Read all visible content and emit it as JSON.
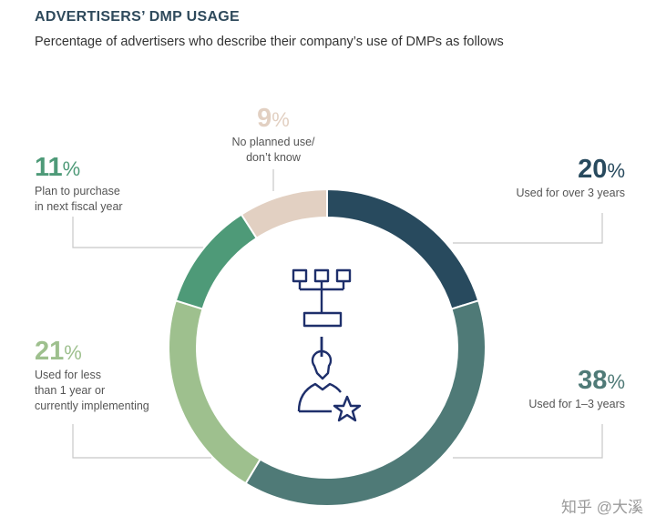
{
  "header": {
    "title": "ADVERTISERS’ DMP USAGE",
    "subtitle": "Percentage of advertisers who describe their company’s use of DMPs as follows"
  },
  "chart_data": {
    "type": "pie",
    "donut": true,
    "unit": "%",
    "series": [
      {
        "name": "Used for over 3 years",
        "value": 20,
        "label": "20",
        "color": "#284a5e",
        "lines": [
          "Used for over 3 years"
        ]
      },
      {
        "name": "Used for 1–3 years",
        "value": 38,
        "label": "38",
        "color": "#4f7a77",
        "lines": [
          "Used for 1–3 years"
        ]
      },
      {
        "name": "Used for less than 1 year or currently implementing",
        "value": 21,
        "label": "21",
        "color": "#9ec08e",
        "lines": [
          "Used for less",
          "than 1 year or",
          "currently implementing"
        ]
      },
      {
        "name": "Plan to purchase in next fiscal year",
        "value": 11,
        "label": "11",
        "color": "#4e9a78",
        "lines": [
          "Plan to purchase",
          "in next fiscal year"
        ]
      },
      {
        "name": "No planned use/ don’t know",
        "value": 9,
        "label": "9",
        "color": "#e2d0c2",
        "lines": [
          "No planned use/",
          "don’t know"
        ]
      }
    ]
  },
  "icons": {
    "center": "org-chart-person-star-icon"
  },
  "watermark": "知乎 @大溪"
}
